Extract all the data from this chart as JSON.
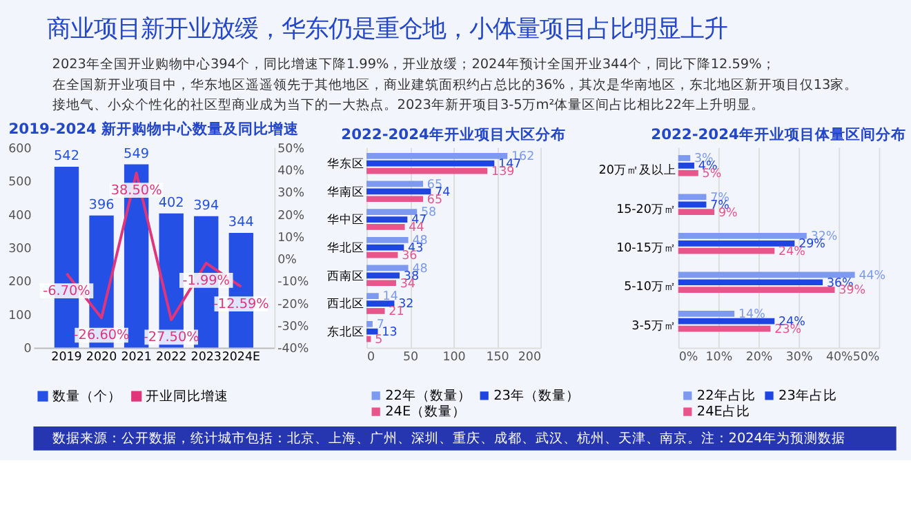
{
  "chart_data": [
    {
      "type": "other",
      "title": "商业项目新开业放缓，华东仍是重仓地，小体量项目占比明显上升",
      "annotations": [
        "2023年全国开业购物中心394个，同比增速下降1.99%，开业放缓；2024年预计全国开业344个，同比下降12.59%；",
        "在全国新开业项目中，华东地区遥遥领先于其他地区，商业建筑面积约占总比的36%，其次是华南地区，东北地区新开项目仅13家。",
        "接地气、小众个性化的社区型商业成为当下的一大热点。2023年新开项目3-5万m²体量区间占比相比22年上升明显。"
      ]
    },
    {
      "type": "bar",
      "title": "2019-2024 新开购物中心数量及同比增速",
      "categories": [
        "2019",
        "2020",
        "2021",
        "2022",
        "2023",
        "2024E"
      ],
      "ylim": [
        0,
        600
      ],
      "yticks": [
        0,
        100,
        200,
        300,
        400,
        500,
        600
      ],
      "y2lim": [
        -40,
        50
      ],
      "y2ticks": [
        {
          "value": -40,
          "label": "-40%"
        },
        {
          "value": -30,
          "label": "-30%"
        },
        {
          "value": -20,
          "label": "-20%"
        },
        {
          "value": -10,
          "label": "-10%"
        },
        {
          "value": 0,
          "label": "0%"
        },
        {
          "value": 10,
          "label": "10%"
        },
        {
          "value": 20,
          "label": "20%"
        },
        {
          "value": 30,
          "label": "30%"
        },
        {
          "value": 40,
          "label": "40%"
        },
        {
          "value": 50,
          "label": "50%"
        }
      ],
      "legend": "bottom",
      "grid": false,
      "series": [
        {
          "name": "数量（个）",
          "color": "#2450e6",
          "type": "bar",
          "values": [
            542,
            396,
            549,
            402,
            394,
            344
          ],
          "value_labels": [
            "542",
            "396",
            "549",
            "402",
            "394",
            "344"
          ]
        },
        {
          "name": "开业同比增速",
          "color": "#e0357a",
          "type": "line",
          "axis": "y2",
          "values": [
            -6.7,
            -26.6,
            38.5,
            -27.5,
            -1.99,
            -12.59
          ],
          "value_labels": [
            "-6.70%",
            "-26.60%",
            "38.50%",
            "-27.50%",
            "-1.99%",
            "-12.59%"
          ]
        }
      ]
    },
    {
      "type": "bar",
      "orientation": "horizontal",
      "title": "2022-2024年开业项目大区分布",
      "categories": [
        "华东区",
        "华南区",
        "华中区",
        "华北区",
        "西南区",
        "西北区",
        "东北区"
      ],
      "xlim": [
        0,
        200
      ],
      "xticks": [
        0,
        50,
        100,
        150,
        200
      ],
      "grid": "x",
      "legend": "bottom",
      "data_labels": true,
      "series": [
        {
          "name": "22年（数量）",
          "color": "#7d9af0",
          "values": [
            162,
            65,
            58,
            48,
            48,
            14,
            7
          ]
        },
        {
          "name": "23年（数量）",
          "color": "#1f45e0",
          "values": [
            147,
            74,
            47,
            43,
            38,
            32,
            13
          ]
        },
        {
          "name": "24E（数量）",
          "color": "#e8558a",
          "values": [
            139,
            65,
            44,
            36,
            34,
            21,
            5
          ]
        }
      ]
    },
    {
      "type": "bar",
      "orientation": "horizontal",
      "title": "2022-2024年开业项目体量区间分布",
      "categories": [
        "20万㎡及以上",
        "15-20万㎡",
        "10-15万㎡",
        "5-10万㎡",
        "3-5万㎡"
      ],
      "xlim": [
        0,
        50
      ],
      "xticks": [
        {
          "value": 0,
          "label": "0%"
        },
        {
          "value": 10,
          "label": "10%"
        },
        {
          "value": 20,
          "label": "20%"
        },
        {
          "value": 30,
          "label": "30%"
        },
        {
          "value": 40,
          "label": "40%"
        },
        {
          "value": 50,
          "label": "50%"
        }
      ],
      "grid": "x",
      "legend": "bottom",
      "series": [
        {
          "name": "22年占比",
          "color": "#7d9af0",
          "values": [
            3,
            7,
            32,
            44,
            14
          ],
          "value_labels": [
            "3%",
            "7%",
            "32%",
            "44%",
            "14%"
          ]
        },
        {
          "name": "23年占比",
          "color": "#1f45e0",
          "values": [
            4,
            7,
            29,
            36,
            24
          ],
          "value_labels": [
            "4%",
            "7%",
            "29%",
            "36%",
            "24%"
          ]
        },
        {
          "name": "24E占比",
          "color": "#e8558a",
          "values": [
            5,
            9,
            24,
            39,
            23
          ],
          "value_labels": [
            "5%",
            "9%",
            "24%",
            "39%",
            "23%"
          ]
        }
      ]
    },
    {
      "type": "other",
      "annotations": [
        "数据来源：公开数据，统计城市包括：北京、上海、广州、深圳、重庆、成都、武汉、杭州、天津、南京。注：2024年为预测数据"
      ]
    }
  ]
}
